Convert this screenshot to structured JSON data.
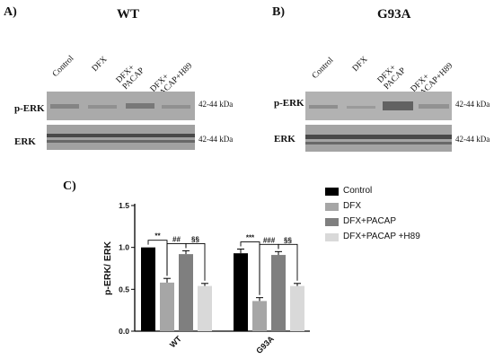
{
  "panels": {
    "a": {
      "label": "A)",
      "title": "WT"
    },
    "b": {
      "label": "B)",
      "title": "G93A"
    },
    "c": {
      "label": "C)"
    }
  },
  "blot": {
    "lanes": [
      "Control",
      "DFX",
      "DFX+ PACAP",
      "DFX+ PACAP+H89"
    ],
    "row_labels": {
      "top": "p-ERK",
      "bottom": "ERK"
    },
    "kda": "42-44 kDa"
  },
  "legend": [
    {
      "label": "Control",
      "color": "#000000"
    },
    {
      "label": "DFX",
      "color": "#a6a6a6"
    },
    {
      "label": "DFX+PACAP",
      "color": "#7f7f7f"
    },
    {
      "label": "DFX+PACAP +H89",
      "color": "#d9d9d9"
    }
  ],
  "chart_data": {
    "type": "bar",
    "categories": [
      "WT",
      "G93A"
    ],
    "ylabel": "p-ERK/ ERK",
    "ylim": [
      0,
      1.5
    ],
    "yticks": [
      "0.0",
      "0.5",
      "1.0",
      "1.5"
    ],
    "series": [
      {
        "name": "Control",
        "values": [
          1.0,
          0.93
        ],
        "errors": [
          0.0,
          0.05
        ],
        "color": "#000000"
      },
      {
        "name": "DFX",
        "values": [
          0.58,
          0.36
        ],
        "errors": [
          0.05,
          0.04
        ],
        "color": "#a6a6a6"
      },
      {
        "name": "DFX+PACAP",
        "values": [
          0.92,
          0.91
        ],
        "errors": [
          0.04,
          0.04
        ],
        "color": "#7f7f7f"
      },
      {
        "name": "DFX+PACAP +H89",
        "values": [
          0.54,
          0.54
        ],
        "errors": [
          0.03,
          0.03
        ],
        "color": "#d9d9d9"
      }
    ],
    "significance": {
      "WT": [
        "**",
        "##",
        "§§"
      ],
      "G93A": [
        "***",
        "###",
        "§§"
      ]
    }
  }
}
